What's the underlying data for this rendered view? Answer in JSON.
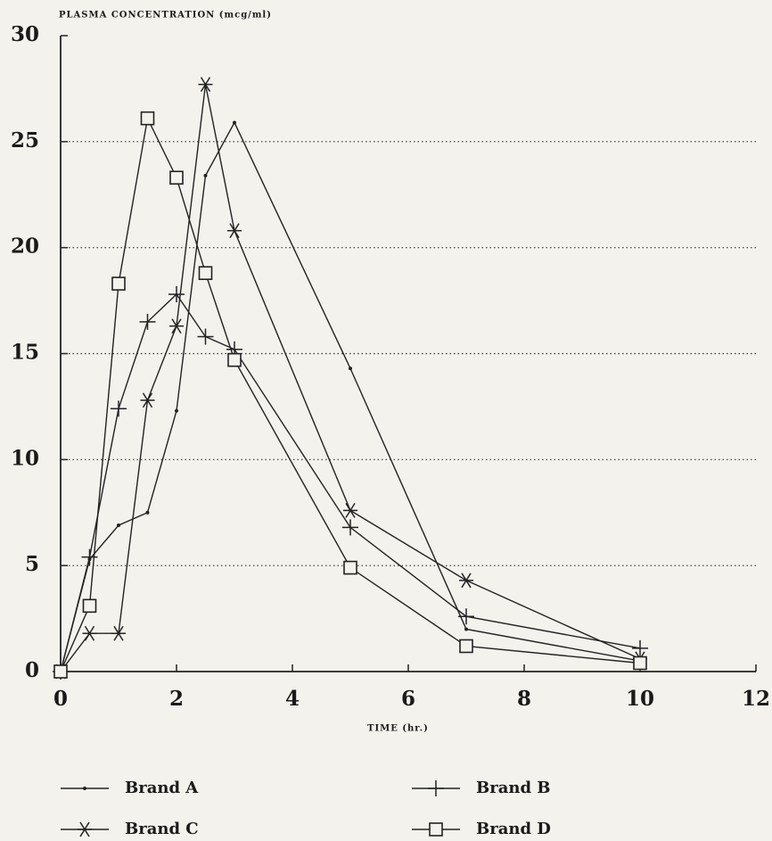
{
  "chart_data": {
    "type": "line",
    "y_label": "PLASMA CONCENTRATION (mcg/ml)",
    "x_label": "TIME (hr.)",
    "x": [
      0,
      0.5,
      1,
      1.5,
      2,
      2.5,
      3,
      5,
      7,
      10
    ],
    "series": [
      {
        "name": "Brand A",
        "color": "#222222",
        "marker": "dot",
        "values": [
          0,
          5.3,
          6.9,
          7.5,
          12.3,
          23.4,
          25.9,
          14.3,
          2.0,
          0.5
        ]
      },
      {
        "name": "Brand B",
        "color": "#222222",
        "marker": "plus",
        "values": [
          0,
          5.4,
          12.4,
          16.5,
          17.8,
          15.8,
          15.2,
          6.8,
          2.6,
          1.1
        ]
      },
      {
        "name": "Brand C",
        "color": "#222222",
        "marker": "star",
        "values": [
          0,
          1.8,
          1.8,
          12.8,
          16.3,
          27.7,
          20.8,
          7.6,
          4.3,
          0.6
        ]
      },
      {
        "name": "Brand D",
        "color": "#222222",
        "marker": "square",
        "values": [
          0,
          3.1,
          18.3,
          26.1,
          23.3,
          18.8,
          14.7,
          4.9,
          1.2,
          0.4
        ]
      }
    ],
    "xlim": [
      0,
      12
    ],
    "xticks": [
      0,
      2,
      4,
      6,
      8,
      10,
      12
    ],
    "ylim": [
      0,
      30
    ],
    "yticks": [
      0,
      5,
      10,
      15,
      20,
      25,
      30
    ],
    "grid": true
  }
}
